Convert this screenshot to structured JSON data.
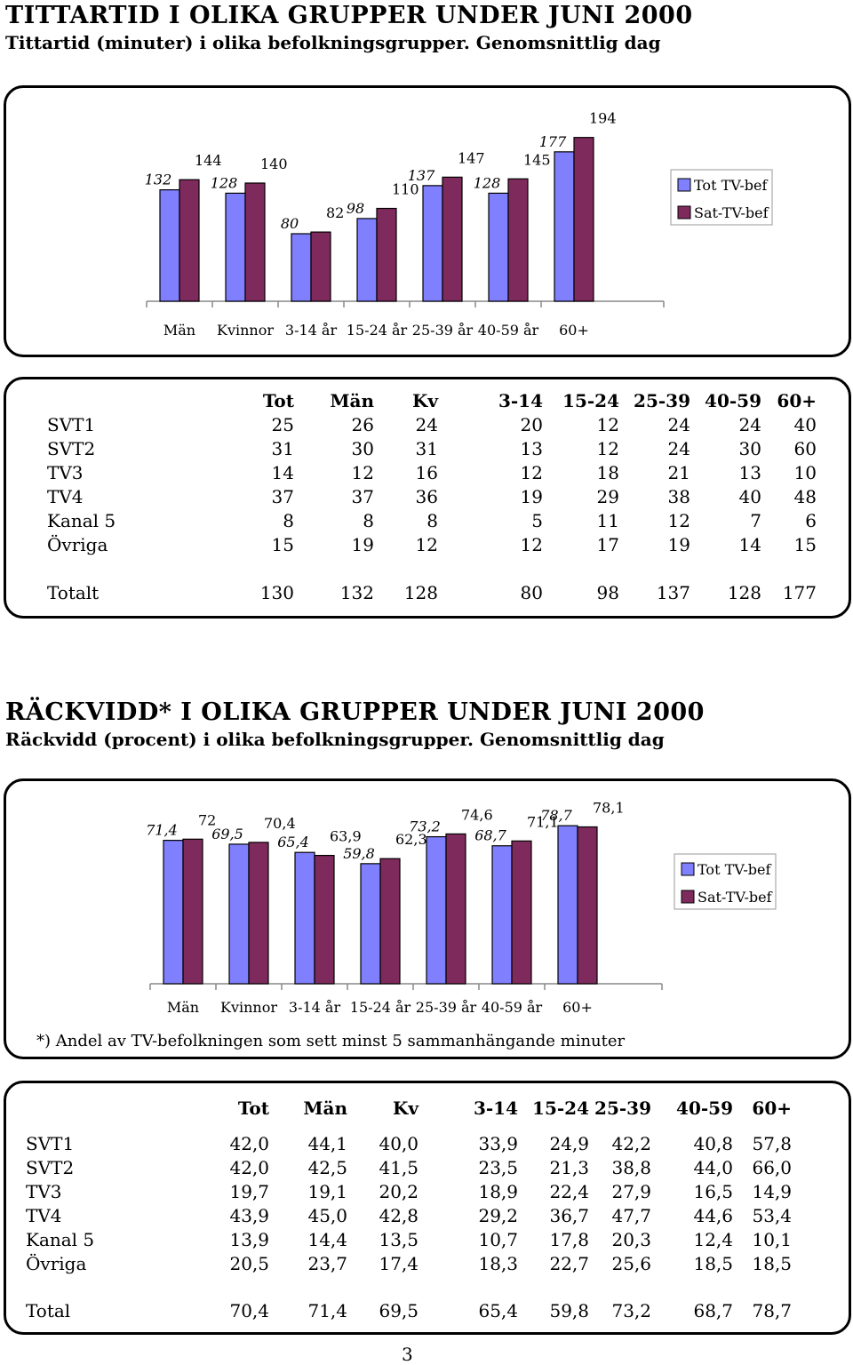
{
  "colors": {
    "tot": "#8080ff",
    "sat": "#7f2a5c"
  },
  "section1": {
    "title": "TITTARTID I OLIKA GRUPPER UNDER JUNI 2000",
    "subtitle": "Tittartid (minuter) i olika befolkningsgrupper. Genomsnittlig dag"
  },
  "section2": {
    "title": "RÄCKVIDD* I OLIKA GRUPPER UNDER JUNI 2000",
    "subtitle": "Räckvidd (procent) i olika befolkningsgrupper. Genomsnittlig dag"
  },
  "chart_data": [
    {
      "type": "bar",
      "categories": [
        "Män",
        "Kvinnor",
        "3-14 år",
        "15-24 år",
        "25-39 år",
        "40-59 år",
        "60+"
      ],
      "series": [
        {
          "name": "Tot TV-bef",
          "values": [
            132,
            128,
            80,
            98,
            137,
            128,
            177
          ],
          "labels": [
            "132",
            "128",
            "80",
            "98",
            "137",
            "128",
            "177"
          ]
        },
        {
          "name": "Sat-TV-bef",
          "values": [
            144,
            140,
            82,
            110,
            147,
            145,
            194
          ],
          "labels": [
            "144",
            "140",
            "82",
            "110",
            "147",
            "145",
            "194"
          ]
        }
      ],
      "ylim": [
        0,
        200
      ],
      "legend": "right"
    },
    {
      "type": "bar",
      "categories": [
        "Män",
        "Kvinnor",
        "3-14 år",
        "15-24 år",
        "25-39 år",
        "40-59 år",
        "60+"
      ],
      "series": [
        {
          "name": "Tot TV-bef",
          "values": [
            71.4,
            69.5,
            65.4,
            59.8,
            73.2,
            68.7,
            78.7
          ],
          "labels": [
            "71,4",
            "69,5",
            "65,4",
            "59,8",
            "73,2",
            "68,7",
            "78,7"
          ]
        },
        {
          "name": "Sat-TV-bef",
          "values": [
            72,
            70.4,
            63.9,
            62.3,
            74.6,
            71.1,
            78.1
          ],
          "labels": [
            "72",
            "70,4",
            "63,9",
            "62,3",
            "74,6",
            "71,1",
            "78,1"
          ]
        }
      ],
      "ylim": [
        0,
        100
      ],
      "legend": "right"
    }
  ],
  "table1": {
    "headers": [
      "Tot",
      "Män",
      "Kv",
      "3-14",
      "15-24",
      "25-39",
      "40-59",
      "60+"
    ],
    "rows": [
      {
        "label": "SVT1",
        "values": [
          "25",
          "26",
          "24",
          "20",
          "12",
          "24",
          "24",
          "40"
        ]
      },
      {
        "label": "SVT2",
        "values": [
          "31",
          "30",
          "31",
          "13",
          "12",
          "24",
          "30",
          "60"
        ]
      },
      {
        "label": "TV3",
        "values": [
          "14",
          "12",
          "16",
          "12",
          "18",
          "21",
          "13",
          "10"
        ]
      },
      {
        "label": "TV4",
        "values": [
          "37",
          "37",
          "36",
          "19",
          "29",
          "38",
          "40",
          "48"
        ]
      },
      {
        "label": "Kanal 5",
        "values": [
          "8",
          "8",
          "8",
          "5",
          "11",
          "12",
          "7",
          "6"
        ]
      },
      {
        "label": "Övriga",
        "values": [
          "15",
          "19",
          "12",
          "12",
          "17",
          "19",
          "14",
          "15"
        ]
      }
    ],
    "total": {
      "label": "Totalt",
      "values": [
        "130",
        "132",
        "128",
        "80",
        "98",
        "137",
        "128",
        "177"
      ]
    }
  },
  "table2": {
    "headers": [
      "Tot",
      "Män",
      "Kv",
      "3-14",
      "15-24",
      "25-39",
      "40-59",
      "60+"
    ],
    "rows": [
      {
        "label": "SVT1",
        "values": [
          "42,0",
          "44,1",
          "40,0",
          "33,9",
          "24,9",
          "42,2",
          "40,8",
          "57,8"
        ]
      },
      {
        "label": "SVT2",
        "values": [
          "42,0",
          "42,5",
          "41,5",
          "23,5",
          "21,3",
          "38,8",
          "44,0",
          "66,0"
        ]
      },
      {
        "label": "TV3",
        "values": [
          "19,7",
          "19,1",
          "20,2",
          "18,9",
          "22,4",
          "27,9",
          "16,5",
          "14,9"
        ]
      },
      {
        "label": "TV4",
        "values": [
          "43,9",
          "45,0",
          "42,8",
          "29,2",
          "36,7",
          "47,7",
          "44,6",
          "53,4"
        ]
      },
      {
        "label": "Kanal 5",
        "values": [
          "13,9",
          "14,4",
          "13,5",
          "10,7",
          "17,8",
          "20,3",
          "12,4",
          "10,1"
        ]
      },
      {
        "label": "Övriga",
        "values": [
          "20,5",
          "23,7",
          "17,4",
          "18,3",
          "22,7",
          "25,6",
          "18,5",
          "18,5"
        ]
      }
    ],
    "total": {
      "label": "Total",
      "values": [
        "70,4",
        "71,4",
        "69,5",
        "65,4",
        "59,8",
        "73,2",
        "68,7",
        "78,7"
      ]
    }
  },
  "footnote": "*) Andel av TV-befolkningen som sett minst 5 sammanhängande minuter",
  "page_number": "3"
}
